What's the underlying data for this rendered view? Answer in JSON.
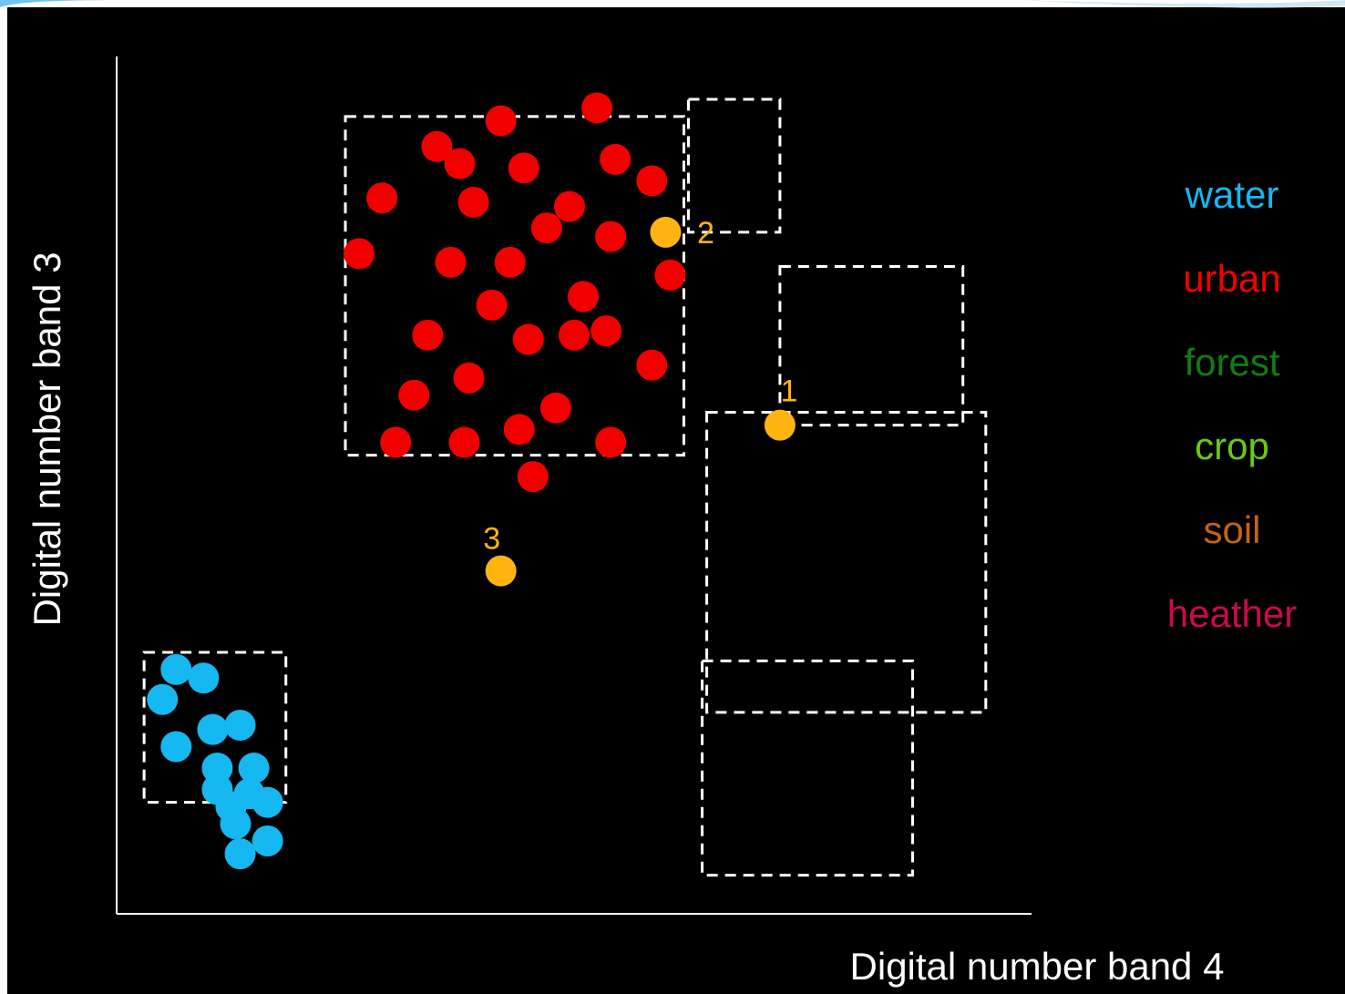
{
  "chart_data": {
    "type": "scatter",
    "xlabel": "Digital number band 4",
    "ylabel": "Digital number band 3",
    "xlim": [
      0,
      100
    ],
    "ylim": [
      0,
      100
    ],
    "grid": false,
    "legend_placement": "right",
    "background": "#000000",
    "box_color": "#ffffff",
    "series": [
      {
        "name": "water",
        "color": "#15b8f0",
        "box": [
          3,
          13,
          18.5,
          30.5
        ],
        "points": [
          [
            6.5,
            28.5
          ],
          [
            9.5,
            27.5
          ],
          [
            5,
            25
          ],
          [
            10.5,
            21.5
          ],
          [
            13.5,
            22
          ],
          [
            6.5,
            19.5
          ],
          [
            11,
            17
          ],
          [
            15,
            17
          ],
          [
            11,
            14.5
          ],
          [
            14.5,
            14
          ],
          [
            12.5,
            12.5
          ],
          [
            16.5,
            13
          ],
          [
            13,
            10.5
          ],
          [
            16.5,
            8.5
          ],
          [
            13.5,
            7
          ]
        ]
      },
      {
        "name": "urban",
        "color": "#f20000",
        "box": [
          25,
          53.5,
          62,
          93
        ],
        "points": [
          [
            42,
            92.5
          ],
          [
            52.5,
            94
          ],
          [
            35,
            89.5
          ],
          [
            37.5,
            87.5
          ],
          [
            44.5,
            87
          ],
          [
            54.5,
            88
          ],
          [
            58.5,
            85.5
          ],
          [
            29,
            83.5
          ],
          [
            39,
            83
          ],
          [
            49.5,
            82.5
          ],
          [
            47,
            80
          ],
          [
            54,
            79
          ],
          [
            26.5,
            77
          ],
          [
            36.5,
            76
          ],
          [
            43,
            76
          ],
          [
            60.5,
            74.5
          ],
          [
            51,
            72
          ],
          [
            41,
            71
          ],
          [
            34,
            67.5
          ],
          [
            45,
            67
          ],
          [
            50,
            67.5
          ],
          [
            53.5,
            68
          ],
          [
            38.5,
            62.5
          ],
          [
            58.5,
            64
          ],
          [
            32.5,
            60.5
          ],
          [
            48,
            59
          ],
          [
            30.5,
            55
          ],
          [
            38,
            55
          ],
          [
            44,
            56.5
          ],
          [
            54,
            55
          ],
          [
            45.5,
            51
          ]
        ]
      },
      {
        "name": "soil",
        "color": "#c36410",
        "box": [
          62.5,
          79.5,
          72.5,
          95
        ]
      },
      {
        "name": "crop",
        "color": "#6cc716",
        "box": [
          72.5,
          57,
          92.5,
          75.5
        ]
      },
      {
        "name": "heather",
        "color": "#cb0a4e",
        "box": [
          64.5,
          23.5,
          95,
          58.5
        ]
      },
      {
        "name": "forest",
        "color": "#0f7d14",
        "box": [
          64,
          4.5,
          87,
          29.5
        ]
      }
    ],
    "unknown_points": {
      "color": "#ffb410",
      "points": [
        {
          "label": "1",
          "x": 72.5,
          "y": 57
        },
        {
          "label": "2",
          "x": 60,
          "y": 79.5
        },
        {
          "label": "3",
          "x": 42,
          "y": 40
        }
      ]
    }
  }
}
